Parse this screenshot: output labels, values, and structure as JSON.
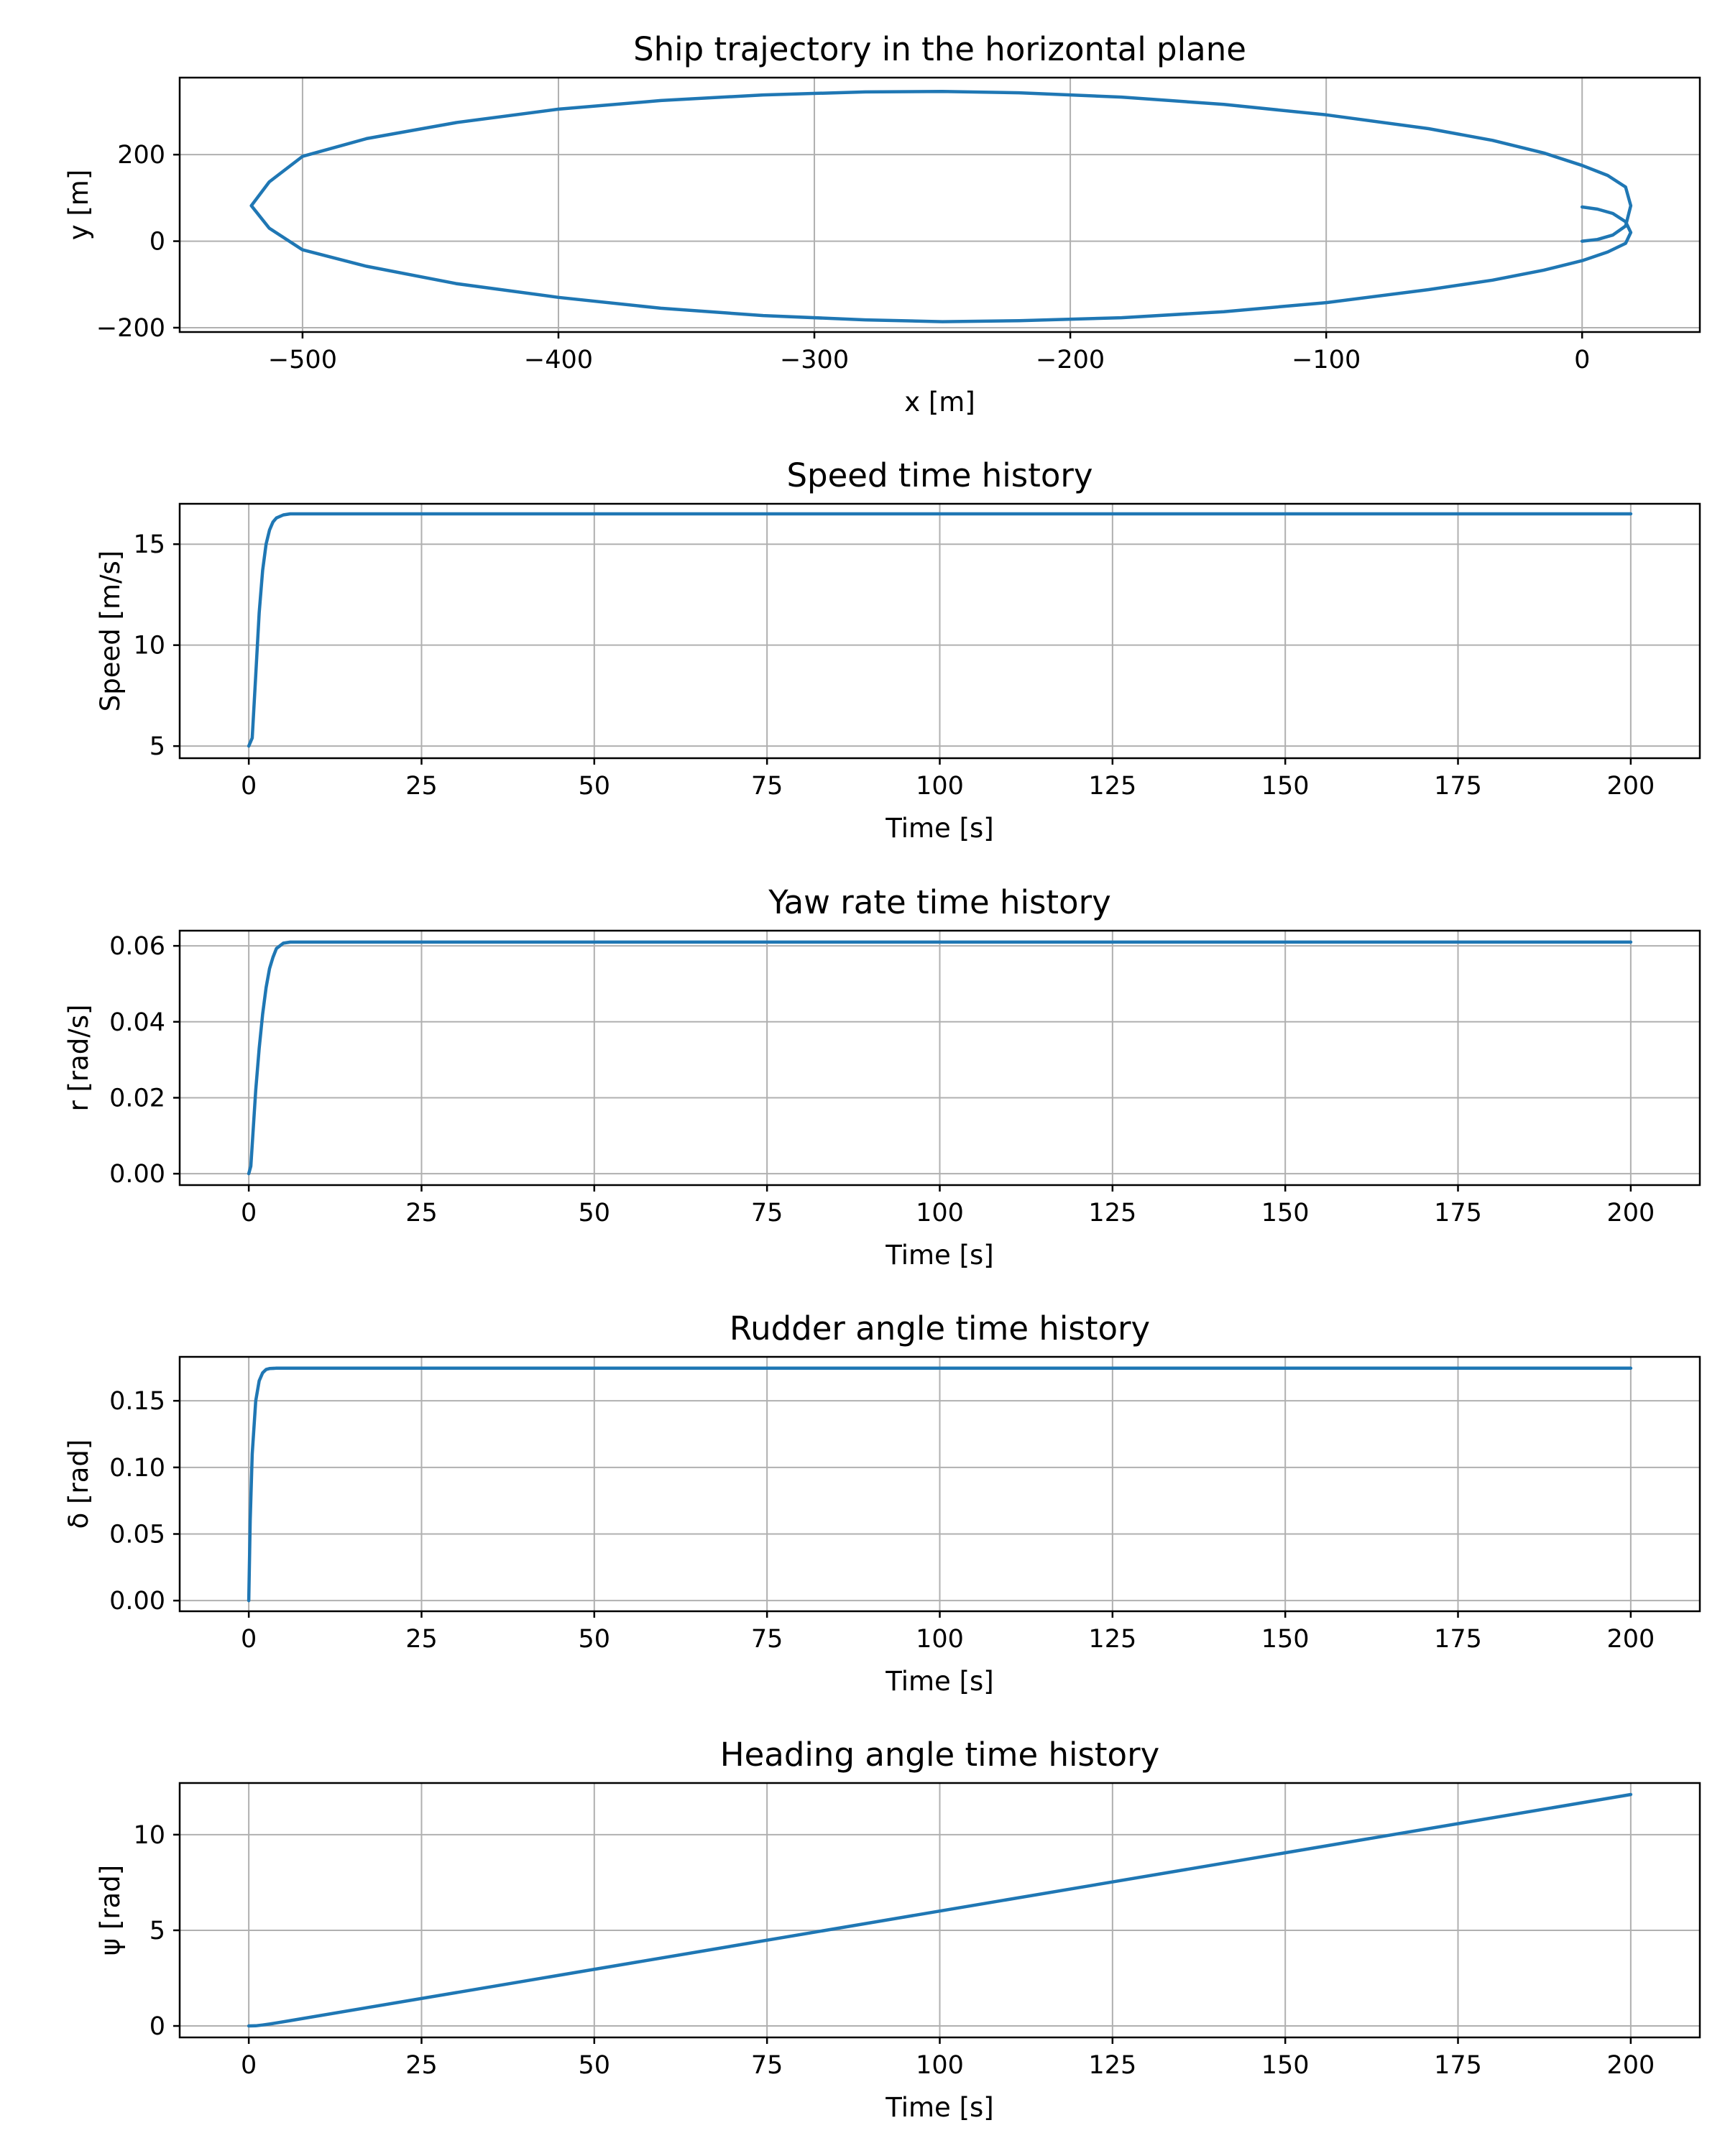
{
  "figure": {
    "line_color": "#1f77b4",
    "grid_color": "#b0b0b0"
  },
  "chart_data": [
    {
      "type": "line",
      "title": "Ship trajectory in the horizontal plane",
      "xlabel": "x [m]",
      "ylabel": "y [m]",
      "xlim": [
        -548,
        46
      ],
      "ylim": [
        -210,
        378
      ],
      "xticks": [
        -500,
        -400,
        -300,
        -200,
        -100,
        0
      ],
      "yticks": [
        -200,
        0,
        200
      ],
      "grid": true,
      "series": [
        {
          "x": [
            0,
            6,
            12,
            17,
            19,
            17,
            10,
            0,
            -15,
            -35,
            -60,
            -100,
            -140,
            -180,
            -220,
            -250,
            -280,
            -320,
            -360,
            -400,
            -440,
            -475,
            -500,
            -513,
            -520,
            -513,
            -500,
            -475,
            -440,
            -400,
            -360,
            -320,
            -280,
            -250,
            -220,
            -180,
            -140,
            -100,
            -60,
            -35,
            -15,
            0,
            10,
            17,
            19,
            17,
            12,
            6,
            0
          ],
          "y": [
            0,
            4,
            14,
            35,
            82,
            125,
            152,
            175,
            204,
            233,
            260,
            292,
            316,
            333,
            343,
            346,
            345,
            338,
            325,
            305,
            274,
            237,
            196,
            137,
            82,
            30,
            -20,
            -58,
            -98,
            -130,
            -155,
            -172,
            -182,
            -186,
            -184,
            -177,
            -163,
            -142,
            -112,
            -90,
            -67,
            -45,
            -25,
            -5,
            20,
            45,
            64,
            74,
            79
          ]
        }
      ]
    },
    {
      "type": "line",
      "title": "Speed time history",
      "xlabel": "Time [s]",
      "ylabel": "Speed [m/s]",
      "xlim": [
        -10,
        210
      ],
      "ylim": [
        4.4,
        17.0
      ],
      "xticks": [
        0,
        25,
        50,
        75,
        100,
        125,
        150,
        175,
        200
      ],
      "yticks": [
        5,
        10,
        15
      ],
      "grid": true,
      "series": [
        {
          "x": [
            0,
            0.5,
            1,
            1.5,
            2,
            2.5,
            3,
            3.5,
            4,
            5,
            6,
            8,
            200
          ],
          "y": [
            5.0,
            5.4,
            8.5,
            11.6,
            13.7,
            15.0,
            15.7,
            16.1,
            16.3,
            16.45,
            16.5,
            16.5,
            16.5
          ]
        }
      ]
    },
    {
      "type": "line",
      "title": "Yaw rate time history",
      "xlabel": "Time [s]",
      "ylabel": "r [rad/s]",
      "xlim": [
        -10,
        210
      ],
      "ylim": [
        -0.003,
        0.064
      ],
      "xticks": [
        0,
        25,
        50,
        75,
        100,
        125,
        150,
        175,
        200
      ],
      "yticks": [
        0.0,
        0.02,
        0.04,
        0.06
      ],
      "yticklabels": [
        "0.00",
        "0.02",
        "0.04",
        "0.06"
      ],
      "grid": true,
      "series": [
        {
          "x": [
            0,
            0.3,
            1,
            1.5,
            2,
            2.5,
            3,
            3.5,
            4,
            5,
            6,
            8,
            200
          ],
          "y": [
            0.0,
            0.002,
            0.022,
            0.033,
            0.042,
            0.049,
            0.054,
            0.057,
            0.0593,
            0.0607,
            0.061,
            0.061,
            0.061
          ]
        }
      ]
    },
    {
      "type": "line",
      "title": "Rudder angle time history",
      "xlabel": "Time [s]",
      "ylabel": "δ [rad]",
      "xlim": [
        -10,
        210
      ],
      "ylim": [
        -0.008,
        0.183
      ],
      "xticks": [
        0,
        25,
        50,
        75,
        100,
        125,
        150,
        175,
        200
      ],
      "yticks": [
        0.0,
        0.05,
        0.1,
        0.15
      ],
      "yticklabels": [
        "0.00",
        "0.05",
        "0.10",
        "0.15"
      ],
      "grid": true,
      "series": [
        {
          "x": [
            0,
            0.2,
            0.5,
            1,
            1.5,
            2,
            2.5,
            3,
            4,
            200
          ],
          "y": [
            0.0,
            0.06,
            0.11,
            0.15,
            0.165,
            0.171,
            0.1735,
            0.1742,
            0.1745,
            0.1745
          ]
        }
      ]
    },
    {
      "type": "line",
      "title": "Heading angle time history",
      "xlabel": "Time [s]",
      "ylabel": "ψ [rad]",
      "xlim": [
        -10,
        210
      ],
      "ylim": [
        -0.6,
        12.7
      ],
      "xticks": [
        0,
        25,
        50,
        75,
        100,
        125,
        150,
        175,
        200
      ],
      "yticks": [
        0,
        5,
        10
      ],
      "grid": true,
      "series": [
        {
          "x": [
            0,
            1,
            2,
            3,
            4,
            6,
            200
          ],
          "y": [
            0.0,
            0.01,
            0.05,
            0.1,
            0.16,
            0.28,
            12.1
          ]
        }
      ]
    }
  ]
}
